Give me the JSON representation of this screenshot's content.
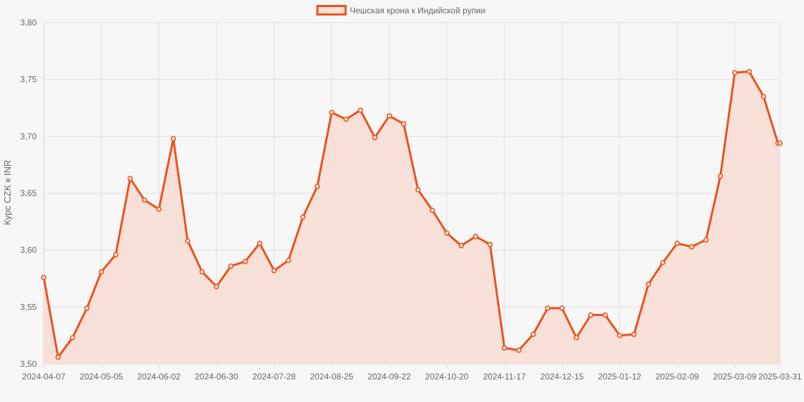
{
  "chart_data": {
    "type": "line",
    "title": "",
    "ylabel": "Курс CZK к INR",
    "xlabel": "",
    "legend": {
      "position": "top-center",
      "label": "Чешская крона к Индийской рупии"
    },
    "grid": true,
    "ylim": [
      3.5,
      3.8
    ],
    "y_ticks": [
      "3,50",
      "3,55",
      "3,60",
      "3,65",
      "3,70",
      "3,75",
      "3,80"
    ],
    "x_tick_labels": [
      "2024-04-07",
      "2024-05-05",
      "2024-06-02",
      "2024-06-30",
      "2024-07-28",
      "2024-08-25",
      "2024-09-22",
      "2024-10-20",
      "2024-11-17",
      "2024-12-15",
      "2025-01-12",
      "2025-02-09",
      "2025-03-09",
      "2025-03-31"
    ],
    "series": [
      {
        "name": "Чешская крона к Индийской рупии",
        "color": "#e8531f",
        "fill": "#f7e0d7",
        "x": [
          "2024-04-07",
          "2024-04-14",
          "2024-04-21",
          "2024-04-28",
          "2024-05-05",
          "2024-05-12",
          "2024-05-19",
          "2024-05-26",
          "2024-06-02",
          "2024-06-09",
          "2024-06-16",
          "2024-06-23",
          "2024-06-30",
          "2024-07-07",
          "2024-07-14",
          "2024-07-21",
          "2024-07-28",
          "2024-08-04",
          "2024-08-11",
          "2024-08-18",
          "2024-08-25",
          "2024-09-01",
          "2024-09-08",
          "2024-09-15",
          "2024-09-22",
          "2024-09-29",
          "2024-10-06",
          "2024-10-13",
          "2024-10-20",
          "2024-10-27",
          "2024-11-03",
          "2024-11-10",
          "2024-11-17",
          "2024-11-24",
          "2024-12-01",
          "2024-12-08",
          "2024-12-15",
          "2024-12-22",
          "2024-12-29",
          "2025-01-05",
          "2025-01-12",
          "2025-01-19",
          "2025-01-26",
          "2025-02-02",
          "2025-02-09",
          "2025-02-16",
          "2025-02-23",
          "2025-03-02",
          "2025-03-09",
          "2025-03-16",
          "2025-03-23",
          "2025-03-30",
          "2025-03-31"
        ],
        "values": [
          3.576,
          3.506,
          3.523,
          3.549,
          3.581,
          3.596,
          3.663,
          3.644,
          3.636,
          3.698,
          3.608,
          3.581,
          3.568,
          3.586,
          3.59,
          3.606,
          3.582,
          3.591,
          3.629,
          3.656,
          3.721,
          3.715,
          3.723,
          3.699,
          3.718,
          3.711,
          3.653,
          3.635,
          3.615,
          3.604,
          3.612,
          3.605,
          3.514,
          3.512,
          3.526,
          3.549,
          3.549,
          3.523,
          3.543,
          3.543,
          3.525,
          3.526,
          3.57,
          3.589,
          3.606,
          3.603,
          3.609,
          3.665,
          3.756,
          3.757,
          3.735,
          3.694,
          3.694
        ]
      }
    ]
  }
}
